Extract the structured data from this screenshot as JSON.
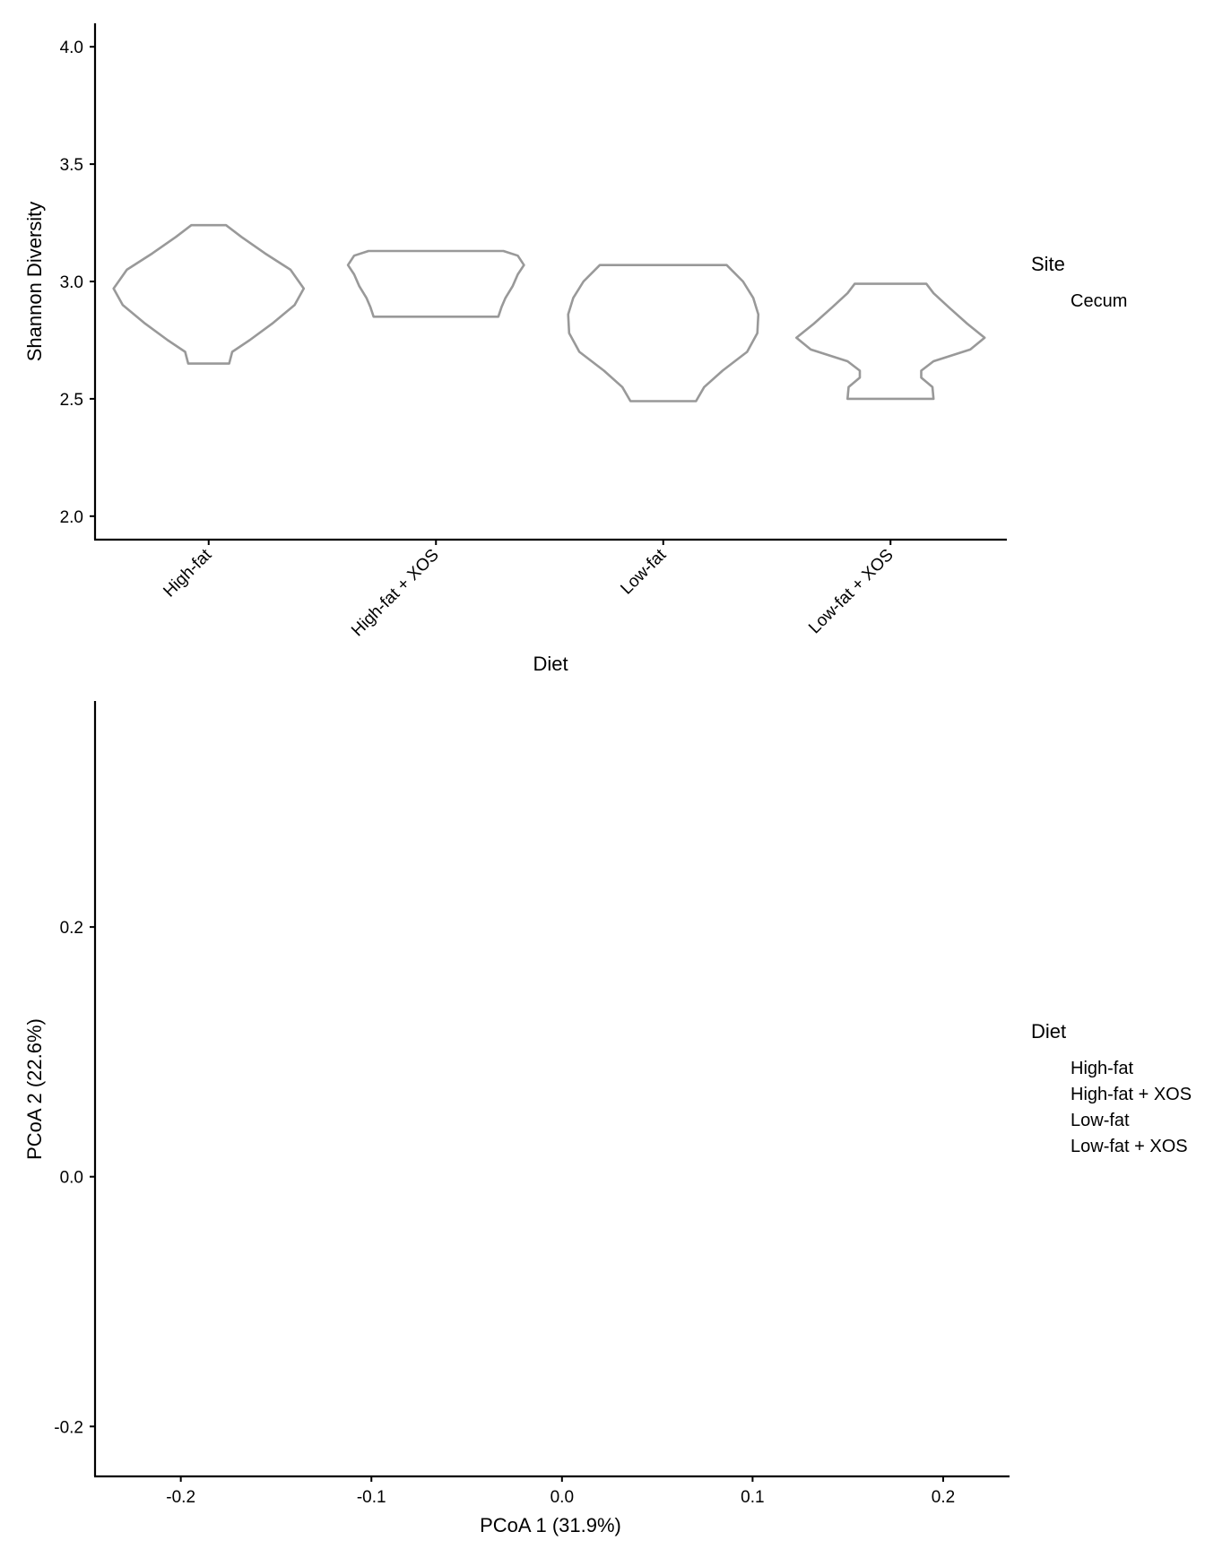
{
  "chart_data": [
    {
      "type": "violin",
      "xlabel": "Diet",
      "ylabel": "Shannon Diversity",
      "categories": [
        "High-fat",
        "High-fat + XOS",
        "Low-fat",
        "Low-fat + XOS"
      ],
      "y_ticks": [
        "2.0",
        "2.5",
        "3.0",
        "3.5",
        "4.0"
      ],
      "ylim": [
        1.9,
        4.1
      ],
      "grid": false,
      "violins": [
        {
          "category": "High-fat",
          "min": 2.65,
          "max": 3.24,
          "profile": [
            [
              2.65,
              0.2
            ],
            [
              2.7,
              0.23
            ],
            [
              2.75,
              0.4
            ],
            [
              2.82,
              0.62
            ],
            [
              2.9,
              0.84
            ],
            [
              2.97,
              0.93
            ],
            [
              3.05,
              0.8
            ],
            [
              3.12,
              0.55
            ],
            [
              3.19,
              0.32
            ],
            [
              3.24,
              0.17
            ]
          ]
        },
        {
          "category": "High-fat + XOS",
          "min": 2.85,
          "max": 3.13,
          "profile": [
            [
              2.85,
              0.61
            ],
            [
              2.89,
              0.64
            ],
            [
              2.93,
              0.68
            ],
            [
              2.98,
              0.75
            ],
            [
              3.03,
              0.8
            ],
            [
              3.07,
              0.86
            ],
            [
              3.11,
              0.8
            ],
            [
              3.13,
              0.66
            ]
          ]
        },
        {
          "category": "Low-fat",
          "min": 2.49,
          "max": 3.07,
          "profile": [
            [
              2.49,
              0.32
            ],
            [
              2.55,
              0.4
            ],
            [
              2.62,
              0.58
            ],
            [
              2.7,
              0.82
            ],
            [
              2.78,
              0.92
            ],
            [
              2.86,
              0.93
            ],
            [
              2.93,
              0.88
            ],
            [
              3.0,
              0.78
            ],
            [
              3.07,
              0.62
            ]
          ]
        },
        {
          "category": "Low-fat + XOS",
          "min": 2.5,
          "max": 2.99,
          "profile": [
            [
              2.5,
              0.42
            ],
            [
              2.55,
              0.41
            ],
            [
              2.59,
              0.3
            ],
            [
              2.62,
              0.3
            ],
            [
              2.66,
              0.42
            ],
            [
              2.71,
              0.78
            ],
            [
              2.76,
              0.92
            ],
            [
              2.82,
              0.75
            ],
            [
              2.89,
              0.57
            ],
            [
              2.95,
              0.42
            ],
            [
              2.99,
              0.35
            ]
          ]
        }
      ],
      "legend": {
        "title": "Site",
        "items": [
          "Cecum"
        ],
        "position": "right"
      }
    },
    {
      "type": "scatter",
      "xlabel": "PCoA 1 (31.9%)",
      "ylabel": "PCoA 2 (22.6%)",
      "x_ticks": [
        "-0.2",
        "-0.1",
        "0.0",
        "0.1",
        "0.2"
      ],
      "y_ticks": [
        "-0.2",
        "0.0",
        "0.2"
      ],
      "xlim": [
        -0.245,
        0.232
      ],
      "ylim": [
        -0.24,
        0.381
      ],
      "grid": false,
      "series": [],
      "legend": {
        "title": "Diet",
        "items": [
          "High-fat",
          "High-fat + XOS",
          "Low-fat",
          "Low-fat + XOS"
        ],
        "position": "right"
      }
    }
  ]
}
